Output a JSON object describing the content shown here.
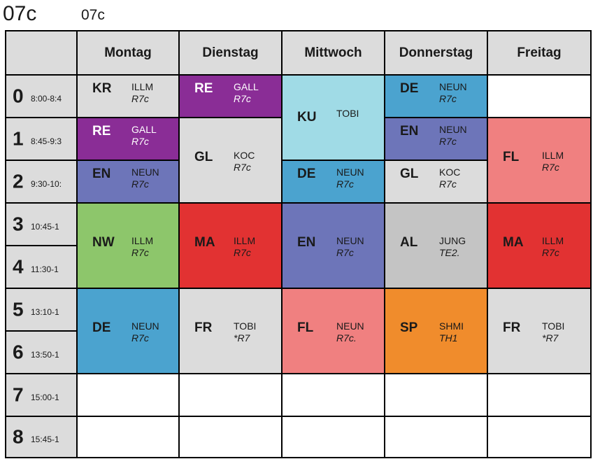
{
  "header": {
    "class_title": "07c",
    "class_subtitle": "07c"
  },
  "days": [
    "Montag",
    "Dienstag",
    "Mittwoch",
    "Donnerstag",
    "Freitag"
  ],
  "periods": [
    {
      "num": "0",
      "time": "8:00-8:4"
    },
    {
      "num": "1",
      "time": "8:45-9:3"
    },
    {
      "num": "2",
      "time": "9:30-10:"
    },
    {
      "num": "3",
      "time": "10:45-1"
    },
    {
      "num": "4",
      "time": "11:30-1"
    },
    {
      "num": "5",
      "time": "13:10-1"
    },
    {
      "num": "6",
      "time": "13:50-1"
    },
    {
      "num": "7",
      "time": "15:00-1"
    },
    {
      "num": "8",
      "time": "15:45-1"
    }
  ],
  "colors": {
    "header": "#dcdcdc",
    "gray": "#dcdcdc",
    "purple": "#8a2d96",
    "blue": "#4ba3cf",
    "indigo": "#6d75b9",
    "lightblue": "#a0dbe6",
    "pink": "#f08080",
    "green": "#8dc66b",
    "red": "#e23232",
    "midgray": "#c4c4c4",
    "orange": "#f08c2c",
    "white": "#ffffff"
  },
  "lessons": [
    {
      "day": 0,
      "start": 0,
      "span": 1,
      "subject": "KR",
      "teacher": "ILLM",
      "room": "R7c",
      "color": "gray",
      "light": false
    },
    {
      "day": 0,
      "start": 1,
      "span": 1,
      "subject": "RE",
      "teacher": "GALL",
      "room": "R7c",
      "color": "purple",
      "light": true
    },
    {
      "day": 0,
      "start": 2,
      "span": 1,
      "subject": "EN",
      "teacher": "NEUN",
      "room": "R7c",
      "color": "indigo",
      "light": false
    },
    {
      "day": 0,
      "start": 3,
      "span": 2,
      "subject": "NW",
      "teacher": "ILLM",
      "room": "R7c",
      "color": "green",
      "light": false
    },
    {
      "day": 0,
      "start": 5,
      "span": 2,
      "subject": "DE",
      "teacher": "NEUN",
      "room": "R7c",
      "color": "blue",
      "light": false
    },
    {
      "day": 1,
      "start": 0,
      "span": 1,
      "subject": "RE",
      "teacher": "GALL",
      "room": "R7c",
      "color": "purple",
      "light": true
    },
    {
      "day": 1,
      "start": 1,
      "span": 2,
      "subject": "GL",
      "teacher": "KOC",
      "room": "R7c",
      "color": "gray",
      "light": false
    },
    {
      "day": 1,
      "start": 3,
      "span": 2,
      "subject": "MA",
      "teacher": "ILLM",
      "room": "R7c",
      "color": "red",
      "light": false
    },
    {
      "day": 1,
      "start": 5,
      "span": 2,
      "subject": "FR",
      "teacher": "TOBI",
      "room": "*R7",
      "color": "gray",
      "light": false
    },
    {
      "day": 2,
      "start": 0,
      "span": 2,
      "subject": "KU",
      "teacher": "TOBI",
      "room": "",
      "color": "lightblue",
      "light": false
    },
    {
      "day": 2,
      "start": 2,
      "span": 1,
      "subject": "DE",
      "teacher": "NEUN",
      "room": "R7c",
      "color": "blue",
      "light": false
    },
    {
      "day": 2,
      "start": 3,
      "span": 2,
      "subject": "EN",
      "teacher": "NEUN",
      "room": "R7c",
      "color": "indigo",
      "light": false
    },
    {
      "day": 2,
      "start": 5,
      "span": 2,
      "subject": "FL",
      "teacher": "NEUN",
      "room": "R7c.",
      "color": "pink",
      "light": false
    },
    {
      "day": 3,
      "start": 0,
      "span": 1,
      "subject": "DE",
      "teacher": "NEUN",
      "room": "R7c",
      "color": "blue",
      "light": false
    },
    {
      "day": 3,
      "start": 1,
      "span": 1,
      "subject": "EN",
      "teacher": "NEUN",
      "room": "R7c",
      "color": "indigo",
      "light": false
    },
    {
      "day": 3,
      "start": 2,
      "span": 1,
      "subject": "GL",
      "teacher": "KOC",
      "room": "R7c",
      "color": "gray",
      "light": false
    },
    {
      "day": 3,
      "start": 3,
      "span": 2,
      "subject": "AL",
      "teacher": "JUNG",
      "room": "TE2.",
      "color": "midgray",
      "light": false
    },
    {
      "day": 3,
      "start": 5,
      "span": 2,
      "subject": "SP",
      "teacher": "SHMI",
      "room": "TH1",
      "color": "orange",
      "light": false
    },
    {
      "day": 4,
      "start": 1,
      "span": 2,
      "subject": "FL",
      "teacher": "ILLM",
      "room": "R7c",
      "color": "pink",
      "light": false
    },
    {
      "day": 4,
      "start": 3,
      "span": 2,
      "subject": "MA",
      "teacher": "ILLM",
      "room": "R7c",
      "color": "red",
      "light": false
    },
    {
      "day": 4,
      "start": 5,
      "span": 2,
      "subject": "FR",
      "teacher": "TOBI",
      "room": "*R7",
      "color": "gray",
      "light": false
    }
  ]
}
